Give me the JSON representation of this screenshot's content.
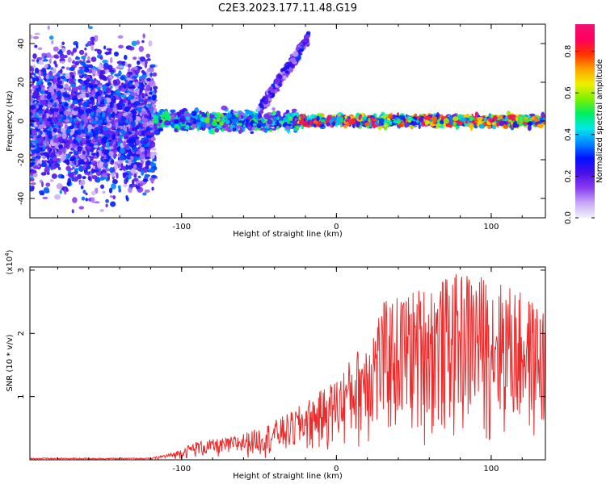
{
  "chart_data": [
    {
      "type": "heatmap",
      "title": "C2E3.2023.177.11.48.G19",
      "xlabel": "Height of straight line (km)",
      "ylabel": "Frequency (Hz)",
      "xlim": [
        -198,
        135
      ],
      "ylim": [
        -50,
        50
      ],
      "xticks": [
        -100,
        0,
        100
      ],
      "xtick_labels": [
        "-100",
        "0",
        "100"
      ],
      "yticks": [
        -40,
        -20,
        0,
        20,
        40
      ],
      "ytick_labels": [
        "-40",
        "-20",
        "0",
        "20",
        "40"
      ],
      "colorbar": {
        "label": "Normalized spectral amplitude",
        "range": [
          0,
          0.93
        ],
        "ticks": [
          0.0,
          0.2,
          0.4,
          0.6,
          0.8
        ],
        "tick_labels": [
          "0.0",
          "0.2",
          "0.4",
          "0.6",
          "0.8"
        ],
        "colormap": [
          "#f1f1ff",
          "#c8a8f5",
          "#8a3cf0",
          "#4b10e8",
          "#0010ff",
          "#0088ff",
          "#00e8e8",
          "#00f060",
          "#80f000",
          "#f0f000",
          "#ffa000",
          "#ff3000",
          "#ff0060",
          "#f01070"
        ]
      },
      "regions": [
        {
          "x": [
            -198,
            -117
          ],
          "freq_center": 0,
          "freq_halfwidth": 50,
          "level": 0.12,
          "description": "broadband scattered noise"
        },
        {
          "x": [
            -117,
            -25
          ],
          "freq_center": 0,
          "freq_halfwidth": 7,
          "level": 0.35
        },
        {
          "x": [
            -25,
            135
          ],
          "freq_center": 0,
          "freq_halfwidth": 4,
          "level": 0.6
        },
        {
          "x": [
            -50,
            -18
          ],
          "freq_center": 25,
          "freq_halfwidth": 2,
          "level": 0.2,
          "description": "rising faint branch"
        }
      ],
      "grid": false
    },
    {
      "type": "line",
      "xlabel": "Height of straight line (km)",
      "ylabel": "SNR (10 * v/v)",
      "y_multiplier": "(x10^4)",
      "xlim": [
        -198,
        135
      ],
      "ylim": [
        0,
        3.05
      ],
      "xticks": [
        -100,
        0,
        100
      ],
      "xtick_labels": [
        "-100",
        "0",
        "100"
      ],
      "yticks": [
        1,
        2,
        3
      ],
      "ytick_labels": [
        "1",
        "2",
        "3"
      ],
      "series_color": "#ee2a2a",
      "envelope": [
        {
          "x": -198,
          "y": 0.02
        },
        {
          "x": -120,
          "y": 0.03
        },
        {
          "x": -105,
          "y": 0.12
        },
        {
          "x": -90,
          "y": 0.3
        },
        {
          "x": -70,
          "y": 0.35
        },
        {
          "x": -50,
          "y": 0.5
        },
        {
          "x": -30,
          "y": 0.75
        },
        {
          "x": -10,
          "y": 1.1
        },
        {
          "x": 0,
          "y": 1.3
        },
        {
          "x": 15,
          "y": 1.8
        },
        {
          "x": 30,
          "y": 2.5
        },
        {
          "x": 60,
          "y": 2.8
        },
        {
          "x": 85,
          "y": 3.0
        },
        {
          "x": 110,
          "y": 2.8
        },
        {
          "x": 135,
          "y": 2.4
        }
      ],
      "grid": false
    }
  ]
}
